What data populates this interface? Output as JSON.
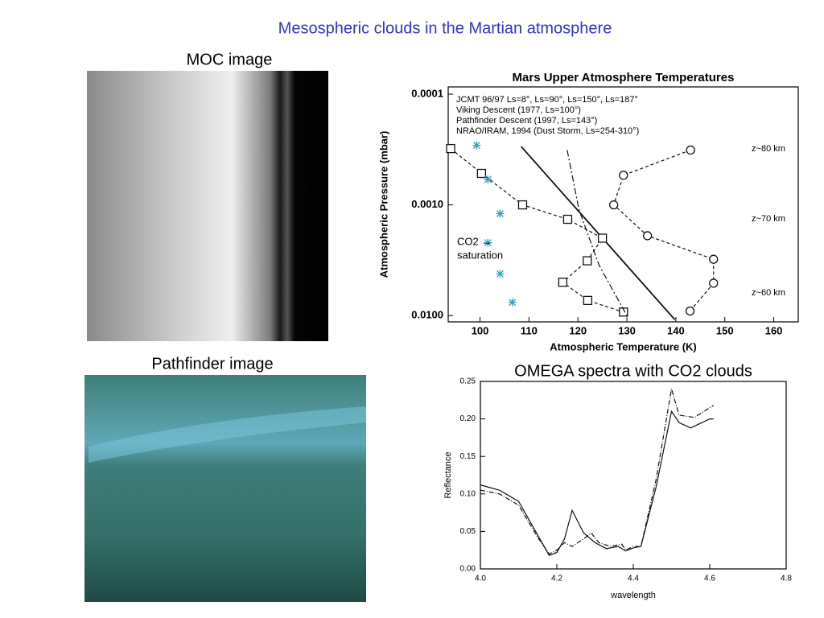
{
  "title": "Mesospheric clouds in the Martian atmosphere",
  "captions": [
    "MOC image",
    "Pathfinder image"
  ],
  "chart_data": [
    {
      "type": "line",
      "title": "Mars Upper Atmosphere Temperatures",
      "xlabel": "Atmospheric Temperature (K)",
      "ylabel": "Atmospheric Pressure (mbar)",
      "xlim": [
        93.5,
        165
      ],
      "xticks": [
        100,
        110,
        120,
        130,
        140,
        150,
        160
      ],
      "ylim": [
        0.0114,
        8.6e-05
      ],
      "log_y": true,
      "yticks": [
        {
          "value": 0.0001,
          "label": "0.0001"
        },
        {
          "value": 0.001,
          "label": "0.0010"
        },
        {
          "value": 0.01,
          "label": "0.0100"
        }
      ],
      "annotations": [
        "z~80 km",
        "z~70 km",
        "z~60 km",
        "CO2 →",
        "saturation"
      ],
      "series": [
        {
          "name": "JCMT 96/97 Ls=8°, Ls=90°, Ls=150°, Ls=187°",
          "color": "#111111",
          "marker": "none",
          "dash": "none",
          "x": [
            108.4,
            139.8
          ],
          "values": [
            0.000297,
            0.0109
          ]
        },
        {
          "name": "Viking Descent (1977, Ls=100°)",
          "color": "#111111",
          "marker": "circle",
          "dash": "4 3",
          "x": [
            143,
            129.3,
            127.3,
            134.2,
            147.7,
            147.7,
            142.9
          ],
          "values": [
            0.00032,
            0.00054,
            0.001,
            0.0019,
            0.0031,
            0.0051,
            0.0091
          ]
        },
        {
          "name": "Pathfinder Descent (1997, Ls=143°)",
          "color": "#111111",
          "marker": "square",
          "dash": "4 3",
          "x": [
            94,
            100.3,
            108.7,
            117.9,
            125,
            121.9,
            116.9,
            122,
            129.3
          ],
          "values": [
            0.00031,
            0.00052,
            0.001,
            0.00135,
            0.002,
            0.0032,
            0.005,
            0.0073,
            0.0093
          ]
        },
        {
          "name": "NRAO/IRAM, 1994 (Dust Storm, Ls=254-310°)",
          "color": "#111111",
          "marker": "none",
          "dash": "8 3 2 3",
          "x": [
            117.8,
            120.2,
            124.3,
            130.1
          ],
          "values": [
            0.00032,
            0.0011,
            0.0035,
            0.0102
          ]
        },
        {
          "color": "#3a9ab8",
          "marker": "asterisk",
          "dash": "none",
          "x": [
            99.3,
            101.6,
            104.1,
            101.6,
            104.1,
            106.6
          ],
          "values": [
            0.00029,
            0.00059,
            0.0012,
            0.0022,
            0.0042,
            0.0076
          ]
        }
      ]
    },
    {
      "type": "line",
      "title": "OMEGA spectra with CO2 clouds",
      "xlabel": "wavelength",
      "ylabel": "Reflectance",
      "xlim": [
        4.0,
        4.8
      ],
      "xticks": [
        {
          "value": 4.0,
          "label": "4.0"
        },
        {
          "value": 4.2,
          "label": "4.2"
        },
        {
          "value": 4.4,
          "label": "4.4"
        },
        {
          "value": 4.6,
          "label": "4.6"
        },
        {
          "value": 4.8,
          "label": "4.8"
        }
      ],
      "ylim": [
        0,
        0.25
      ],
      "yticks": [
        {
          "value": 0,
          "label": "0.00"
        },
        {
          "value": 0.05,
          "label": "0.05"
        },
        {
          "value": 0.1,
          "label": "0.10"
        },
        {
          "value": 0.15,
          "label": "0.15"
        },
        {
          "value": 0.2,
          "label": "0.20"
        },
        {
          "value": 0.25,
          "label": "0.25"
        }
      ],
      "series": [
        {
          "color": "#111111",
          "marker": "none",
          "dash": "none",
          "x": [
            4.0,
            4.05,
            4.1,
            4.15,
            4.18,
            4.2,
            4.22,
            4.24,
            4.27,
            4.3,
            4.33,
            4.36,
            4.38,
            4.4,
            4.42,
            4.46,
            4.5,
            4.52,
            4.55,
            4.6,
            4.61
          ],
          "values": [
            0.112,
            0.105,
            0.09,
            0.045,
            0.018,
            0.022,
            0.04,
            0.078,
            0.048,
            0.035,
            0.027,
            0.03,
            0.024,
            0.028,
            0.03,
            0.11,
            0.21,
            0.195,
            0.188,
            0.2,
            0.2
          ]
        },
        {
          "color": "#111111",
          "marker": "none",
          "dash": "6 2 1 2",
          "x": [
            4.0,
            4.05,
            4.1,
            4.15,
            4.18,
            4.2,
            4.22,
            4.24,
            4.27,
            4.29,
            4.31,
            4.34,
            4.37,
            4.38,
            4.4,
            4.42,
            4.46,
            4.5,
            4.52,
            4.56,
            4.6,
            4.61
          ],
          "values": [
            0.105,
            0.1,
            0.085,
            0.042,
            0.02,
            0.025,
            0.035,
            0.03,
            0.04,
            0.048,
            0.035,
            0.03,
            0.033,
            0.025,
            0.03,
            0.03,
            0.12,
            0.24,
            0.205,
            0.202,
            0.215,
            0.218
          ]
        }
      ]
    }
  ]
}
